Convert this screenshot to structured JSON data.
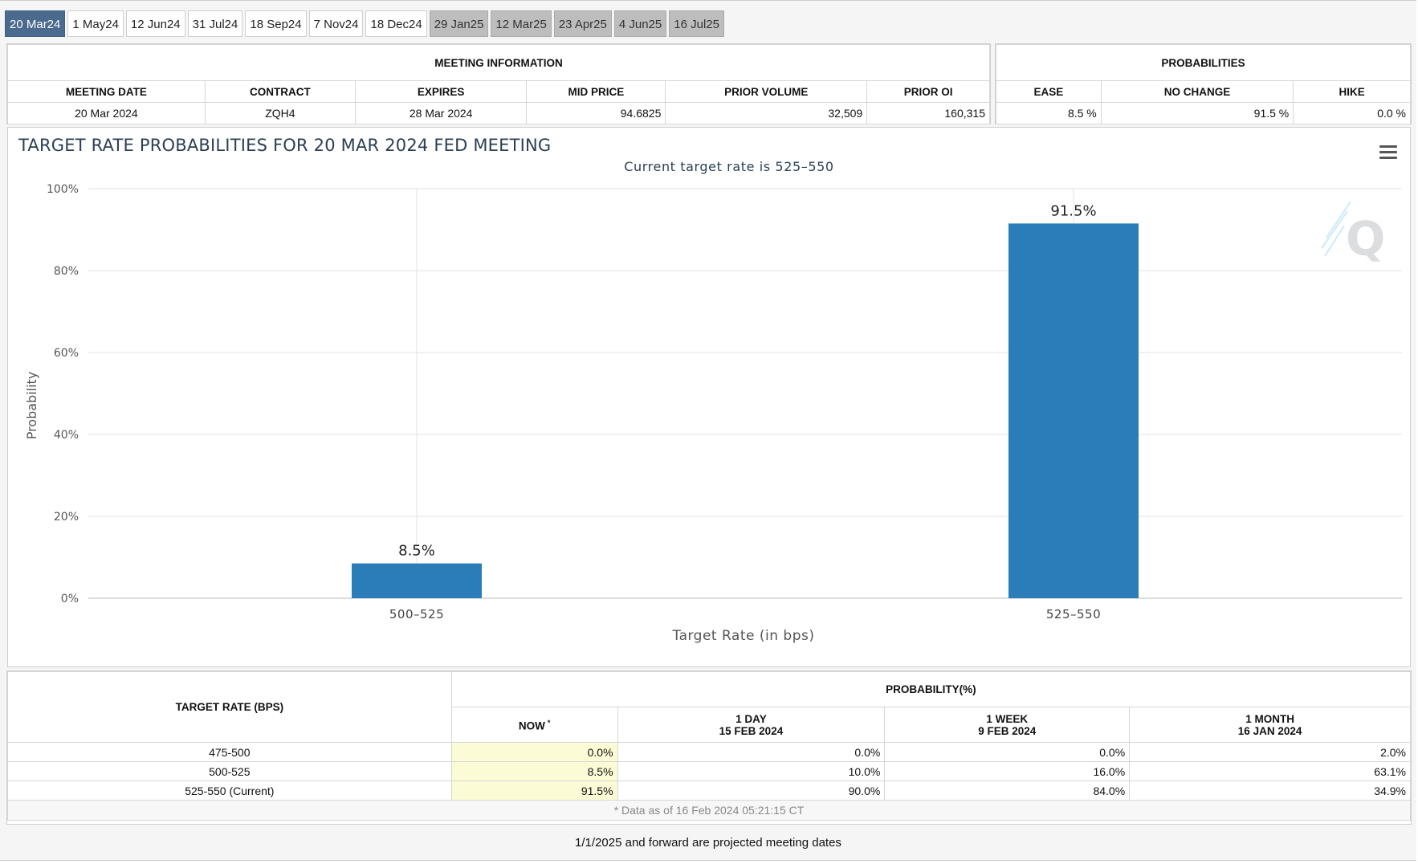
{
  "tabs": [
    {
      "label": "20 Mar24",
      "state": "active"
    },
    {
      "label": "1 May24",
      "state": "normal"
    },
    {
      "label": "12 Jun24",
      "state": "normal"
    },
    {
      "label": "31 Jul24",
      "state": "normal"
    },
    {
      "label": "18 Sep24",
      "state": "normal"
    },
    {
      "label": "7 Nov24",
      "state": "normal"
    },
    {
      "label": "18 Dec24",
      "state": "normal"
    },
    {
      "label": "29 Jan25",
      "state": "projected"
    },
    {
      "label": "12 Mar25",
      "state": "projected"
    },
    {
      "label": "23 Apr25",
      "state": "projected"
    },
    {
      "label": "4 Jun25",
      "state": "projected"
    },
    {
      "label": "16 Jul25",
      "state": "projected"
    }
  ],
  "meeting_info": {
    "heading": "MEETING INFORMATION",
    "headers": [
      "MEETING DATE",
      "CONTRACT",
      "EXPIRES",
      "MID PRICE",
      "PRIOR VOLUME",
      "PRIOR OI"
    ],
    "values": [
      "20 Mar 2024",
      "ZQH4",
      "28 Mar 2024",
      "94.6825",
      "32,509",
      "160,315"
    ]
  },
  "probabilities": {
    "heading": "PROBABILITIES",
    "headers": [
      "EASE",
      "NO CHANGE",
      "HIKE"
    ],
    "values": [
      "8.5 %",
      "91.5 %",
      "0.0 %"
    ]
  },
  "chart": {
    "title": "TARGET RATE PROBABILITIES FOR 20 MAR 2024 FED MEETING",
    "menu_icon": "hamburger-menu-icon",
    "watermark_icon": "quikstrike-q-logo"
  },
  "chart_data": {
    "type": "bar",
    "title": "TARGET RATE PROBABILITIES FOR 20 MAR 2024 FED MEETING",
    "subtitle": "Current target rate is 525–550",
    "categories": [
      "500–525",
      "525–550"
    ],
    "values": [
      8.5,
      91.5
    ],
    "data_labels": [
      "8.5%",
      "91.5%"
    ],
    "xlabel": "Target Rate (in bps)",
    "ylabel": "Probability",
    "ylim": [
      0,
      100
    ],
    "yticks": [
      "0%",
      "20%",
      "40%",
      "60%",
      "80%",
      "100%"
    ],
    "ytick_values": [
      0,
      20,
      40,
      60,
      80,
      100
    ],
    "grid": true,
    "bar_color": "#2a7db8"
  },
  "prob_table": {
    "rate_header": "TARGET RATE (BPS)",
    "group_header": "PROBABILITY(%)",
    "columns": [
      {
        "line1": "NOW",
        "marker": "*",
        "line2": ""
      },
      {
        "line1": "1 DAY",
        "line2": "15 FEB 2024"
      },
      {
        "line1": "1 WEEK",
        "line2": "9 FEB 2024"
      },
      {
        "line1": "1 MONTH",
        "line2": "16 JAN 2024"
      }
    ],
    "rows": [
      {
        "rate": "475-500",
        "values": [
          "0.0%",
          "0.0%",
          "0.0%",
          "2.0%"
        ]
      },
      {
        "rate": "500-525",
        "values": [
          "8.5%",
          "10.0%",
          "16.0%",
          "63.1%"
        ]
      },
      {
        "rate": "525-550 (Current)",
        "values": [
          "91.5%",
          "90.0%",
          "84.0%",
          "34.9%"
        ]
      }
    ],
    "footnote": "* Data as of 16 Feb 2024 05:21:15 CT",
    "now_highlight_color": "#fbfbd5"
  },
  "bottom_note": "1/1/2025 and forward are projected meeting dates"
}
